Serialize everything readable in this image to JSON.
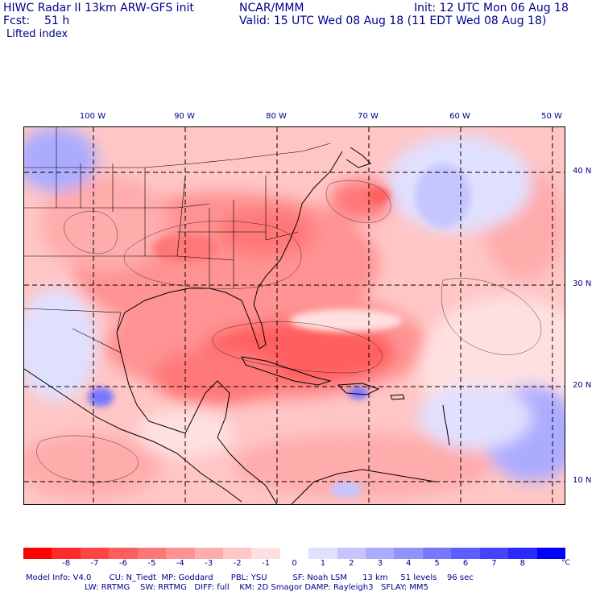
{
  "header": {
    "left_line1": "HIWC Radar II 13km ARW-GFS init",
    "left_line2": "Fcst:    51 h",
    "center": "NCAR/MMM",
    "right_line1": "Init: 12 UTC Mon 06 Aug 18",
    "right_line2": "Valid: 15 UTC Wed 08 Aug 18 (11 EDT Wed 08 Aug 18)",
    "field": "Lifted index"
  },
  "map": {
    "lon_labels": [
      "100 W",
      "90 W",
      "80 W",
      "70 W",
      "60 W",
      "50 W"
    ],
    "lat_labels": [
      "40 N",
      "30 N",
      "20 N",
      "10 N"
    ]
  },
  "colorbar": {
    "colors": [
      "#ff0000",
      "#ff2a2a",
      "#ff4444",
      "#ff5e5e",
      "#ff7878",
      "#ff9292",
      "#ffacac",
      "#ffc6c6",
      "#ffe0e0",
      "#ffffff",
      "#e0e0ff",
      "#c6c6ff",
      "#acacff",
      "#9292ff",
      "#7878ff",
      "#5e5eff",
      "#4444ff",
      "#2a2aff",
      "#0000ff"
    ],
    "ticks": [
      "-8",
      "-7",
      "-6",
      "-5",
      "-4",
      "-3",
      "-2",
      "-1",
      "0",
      "1",
      "2",
      "3",
      "4",
      "5",
      "6",
      "7",
      "8"
    ],
    "unit": "°C"
  },
  "footer": {
    "line1": "Model Info: V4.0       CU: N_Tiedt  MP: Goddard       PBL: YSU          SF: Noah LSM      13 km     51 levels    96 sec",
    "line2": "                       LW: RRTMG    SW: RRTMG   DIFF: full    KM: 2D Smagor DAMP: Rayleigh3   SFLAY: MM5"
  }
}
